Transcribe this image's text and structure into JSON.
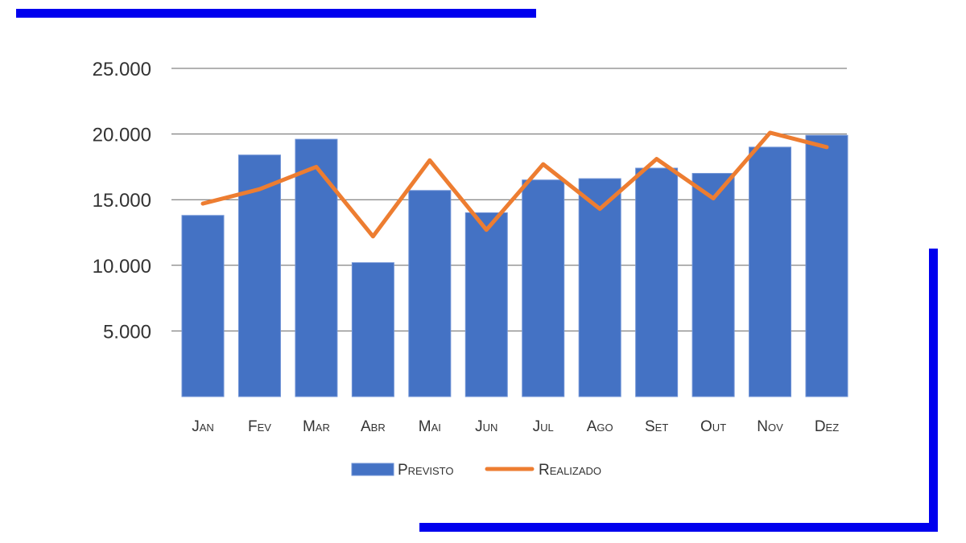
{
  "decoration": {
    "accent_color": "#0000ee"
  },
  "chart_data": {
    "type": "bar",
    "categories": [
      "Jan",
      "Fev",
      "Mar",
      "Abr",
      "Mai",
      "Jun",
      "Jul",
      "Ago",
      "Set",
      "Out",
      "Nov",
      "Dez"
    ],
    "series": [
      {
        "name": "Previsto",
        "type": "bar",
        "color": "#4472c4",
        "values": [
          13800,
          18400,
          19600,
          10200,
          15700,
          14000,
          16500,
          16600,
          17400,
          17000,
          19000,
          19900
        ]
      },
      {
        "name": "Realizado",
        "type": "line",
        "color": "#ed7d31",
        "values": [
          14700,
          15800,
          17500,
          12200,
          18000,
          12700,
          17700,
          14300,
          18100,
          15100,
          20100,
          19000
        ]
      }
    ],
    "yticks": [
      5000,
      10000,
      15000,
      20000,
      25000
    ],
    "ytick_labels": [
      "5.000",
      "10.000",
      "15.000",
      "20.000",
      "25.000"
    ],
    "ylim": [
      0,
      25000
    ],
    "grid": true,
    "legend_position": "bottom"
  }
}
